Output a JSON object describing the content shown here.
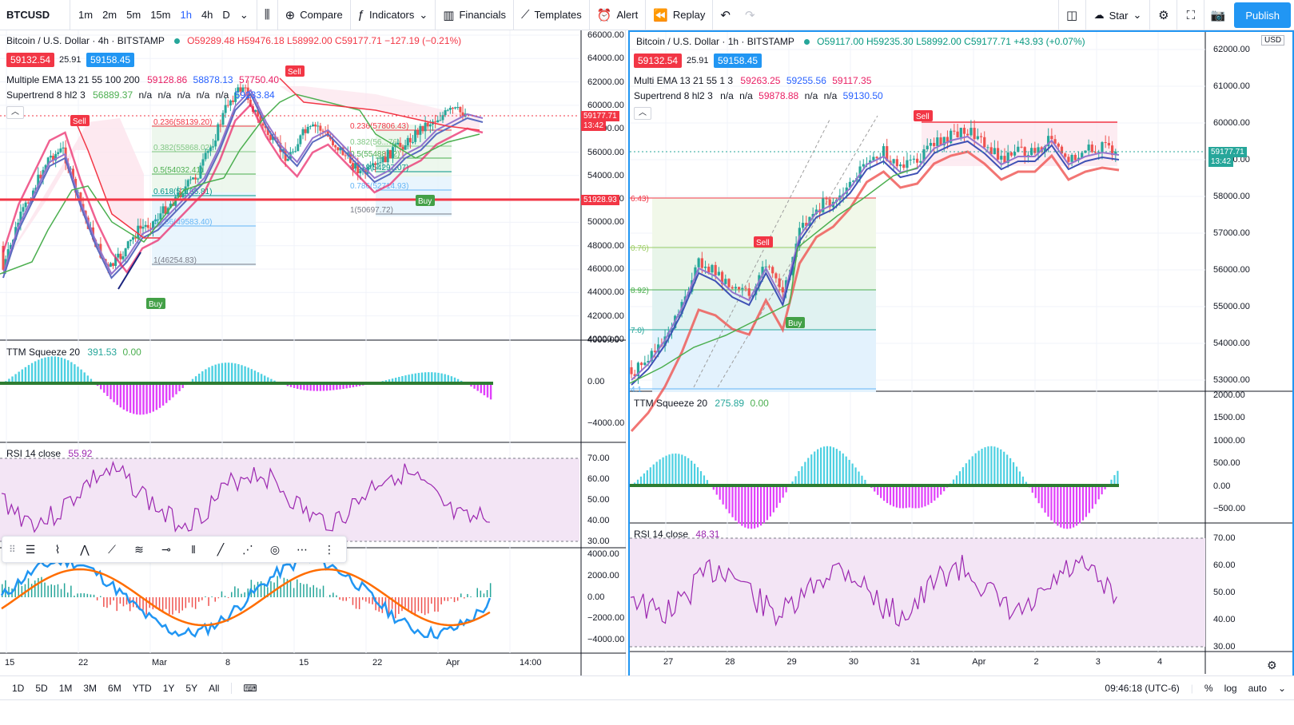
{
  "topbar": {
    "symbol": "BTCUSD",
    "intervals": [
      "1m",
      "2m",
      "5m",
      "15m",
      "1h",
      "4h",
      "D"
    ],
    "active_interval": "1h",
    "compare_label": "Compare",
    "indicators_label": "Indicators",
    "financials_label": "Financials",
    "templates_label": "Templates",
    "alert_label": "Alert",
    "replay_label": "Replay",
    "star_label": "Star",
    "publish_label": "Publish"
  },
  "left": {
    "title": "Bitcoin / U.S. Dollar · 4h · BITSTAMP",
    "ohlc": {
      "o": "O59289.48",
      "h": "H59476.18",
      "l": "L58992.00",
      "c": "C59177.71",
      "chg": "−127.19 (−0.21%)"
    },
    "bid": "59132.54",
    "spread": "25.91",
    "ask": "59158.45",
    "ema_label": "Multiple EMA 13 21 55 100 200",
    "ema_vals": [
      "59128.86",
      "58878.13",
      "57750.40"
    ],
    "st_label": "Supertrend 8 hl2 3",
    "st_vals": [
      "56889.37",
      "n/a",
      "n/a",
      "n/a",
      "n/a",
      "n/a",
      "59233.84"
    ],
    "ttm_label": "TTM Squeeze 20",
    "ttm_vals": [
      "391.53",
      "0.00"
    ],
    "rsi_label": "RSI 14 close",
    "rsi_val": "55.92",
    "price_axis": [
      "66000.00",
      "64000.00",
      "62000.00",
      "60000.00",
      "58000.00",
      "56000.00",
      "54000.00",
      "52000.00",
      "50000.00",
      "48000.00",
      "46000.00",
      "44000.00",
      "42000.00",
      "40000.00"
    ],
    "ttm_axis": [
      "4000.00",
      "0.00",
      "−4000.00"
    ],
    "rsi_axis": [
      "70.00",
      "60.00",
      "50.00",
      "40.00",
      "30.00"
    ],
    "macd_axis": [
      "4000.00",
      "2000.00",
      "0.00",
      "−2000.00",
      "−4000.00"
    ],
    "time_axis": [
      "15",
      "22",
      "Mar",
      "8",
      "15",
      "22",
      "Apr",
      "14:00"
    ],
    "last_price": "59177.71",
    "last_time": "13:42",
    "hline_price": "51928.93",
    "fib": [
      "0.236(58139.20)",
      "0.382(55868.02)",
      "0.5(54032.41)",
      "0.618(52196.81)",
      "0.786(49583.40)",
      "1(46254.83)"
    ],
    "fib2": [
      "0.236(57806.43)",
      "0.382(56...76)",
      "0.5(55488.92)",
      "0.618(54297.07)",
      "0.786(52714.93)",
      "1(50697.72)"
    ],
    "signals": {
      "sell": "Sell",
      "buy": "Buy"
    }
  },
  "right": {
    "title": "Bitcoin / U.S. Dollar · 1h · BITSTAMP",
    "ohlc": {
      "o": "O59117.00",
      "h": "H59235.30",
      "l": "L58992.00",
      "c": "C59177.71",
      "chg": "+43.93 (+0.07%)"
    },
    "bid": "59132.54",
    "spread": "25.91",
    "ask": "59158.45",
    "ema_label": "Multi EMA 13 21 55 1 3",
    "ema_vals": [
      "59263.25",
      "59255.56",
      "59117.35"
    ],
    "st_label": "Supertrend 8 hl2 3",
    "st_vals": [
      "n/a",
      "n/a",
      "59878.88",
      "n/a",
      "n/a",
      "59130.50"
    ],
    "ttm_label": "TTM Squeeze 20",
    "ttm_vals": [
      "275.89",
      "0.00"
    ],
    "rsi_label": "RSI 14 close",
    "rsi_val": "48.31",
    "currency": "USD",
    "price_axis": [
      "62000.00",
      "61000.00",
      "60000.00",
      "59000.00",
      "58000.00",
      "57000.00",
      "56000.00",
      "55000.00",
      "54000.00",
      "53000.00"
    ],
    "ttm_axis": [
      "2000.00",
      "1500.00",
      "1000.00",
      "500.00",
      "0.00",
      "−500.00"
    ],
    "rsi_axis": [
      "70.00",
      "60.00",
      "50.00",
      "40.00",
      "30.00"
    ],
    "time_axis": [
      "27",
      "28",
      "29",
      "30",
      "31",
      "Apr",
      "2",
      "3",
      "4"
    ],
    "last_price": "59177.71",
    "last_time": "13:42",
    "fib_left": [
      "6.43)",
      "0.76)",
      "8.92)",
      "7.0)",
      "4.1"
    ],
    "signals": {
      "sell": "Sell",
      "buy": "Buy"
    }
  },
  "bottombar": {
    "ranges": [
      "1D",
      "5D",
      "1M",
      "3M",
      "6M",
      "YTD",
      "1Y",
      "5Y",
      "All"
    ],
    "clock": "09:46:18 (UTC-6)",
    "percent": "%",
    "log": "log",
    "auto": "auto"
  }
}
